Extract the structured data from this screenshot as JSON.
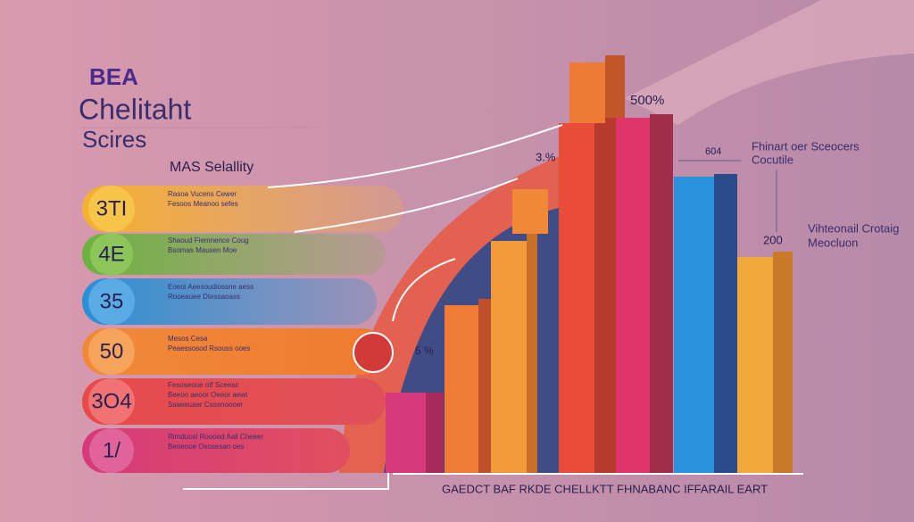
{
  "header": {
    "logo": "BEA",
    "title": "Chelitaht",
    "subtitle": "Scires",
    "tagline": "MAS Selallity"
  },
  "rows": [
    {
      "badge": "3TI",
      "lines": [
        "Rasoa Vucens Cewer",
        "Fesoos Meanoo sefes"
      ]
    },
    {
      "badge": "4E",
      "lines": [
        "Shaoud Fiemnence Coug",
        "Bsomas Mausen Moe"
      ]
    },
    {
      "badge": "35",
      "lines": [
        "Eoeoi Aeesoudiossne aess",
        "Rooeauee Dtessaoass"
      ]
    },
    {
      "badge": "50",
      "lines": [
        "Mesos Cesa",
        "Peaessosod Rsouss ooes"
      ]
    },
    {
      "badge": "3O4",
      "lines": [
        "Fesoseoue otf Sceeac",
        "Beeoo aeoor Oeeor aewt",
        "Ssaeeuaer Cssenoooer"
      ]
    },
    {
      "badge": "1/",
      "lines": [
        "Rimduosl Roooed Aall Cheeer",
        "Beoeooe Ososesan oes"
      ]
    }
  ],
  "bar_labels": [
    "500%",
    "3.%",
    "604",
    "5 %",
    "200"
  ],
  "notes": [
    "Fhinart oer Sceocers",
    "Cocutile",
    "Vihteonail Crotaig",
    "Meocluon"
  ],
  "footer": "GAEDCT BAF RKDE CHELLKTT FHNABANC IFFARAIL EART"
}
